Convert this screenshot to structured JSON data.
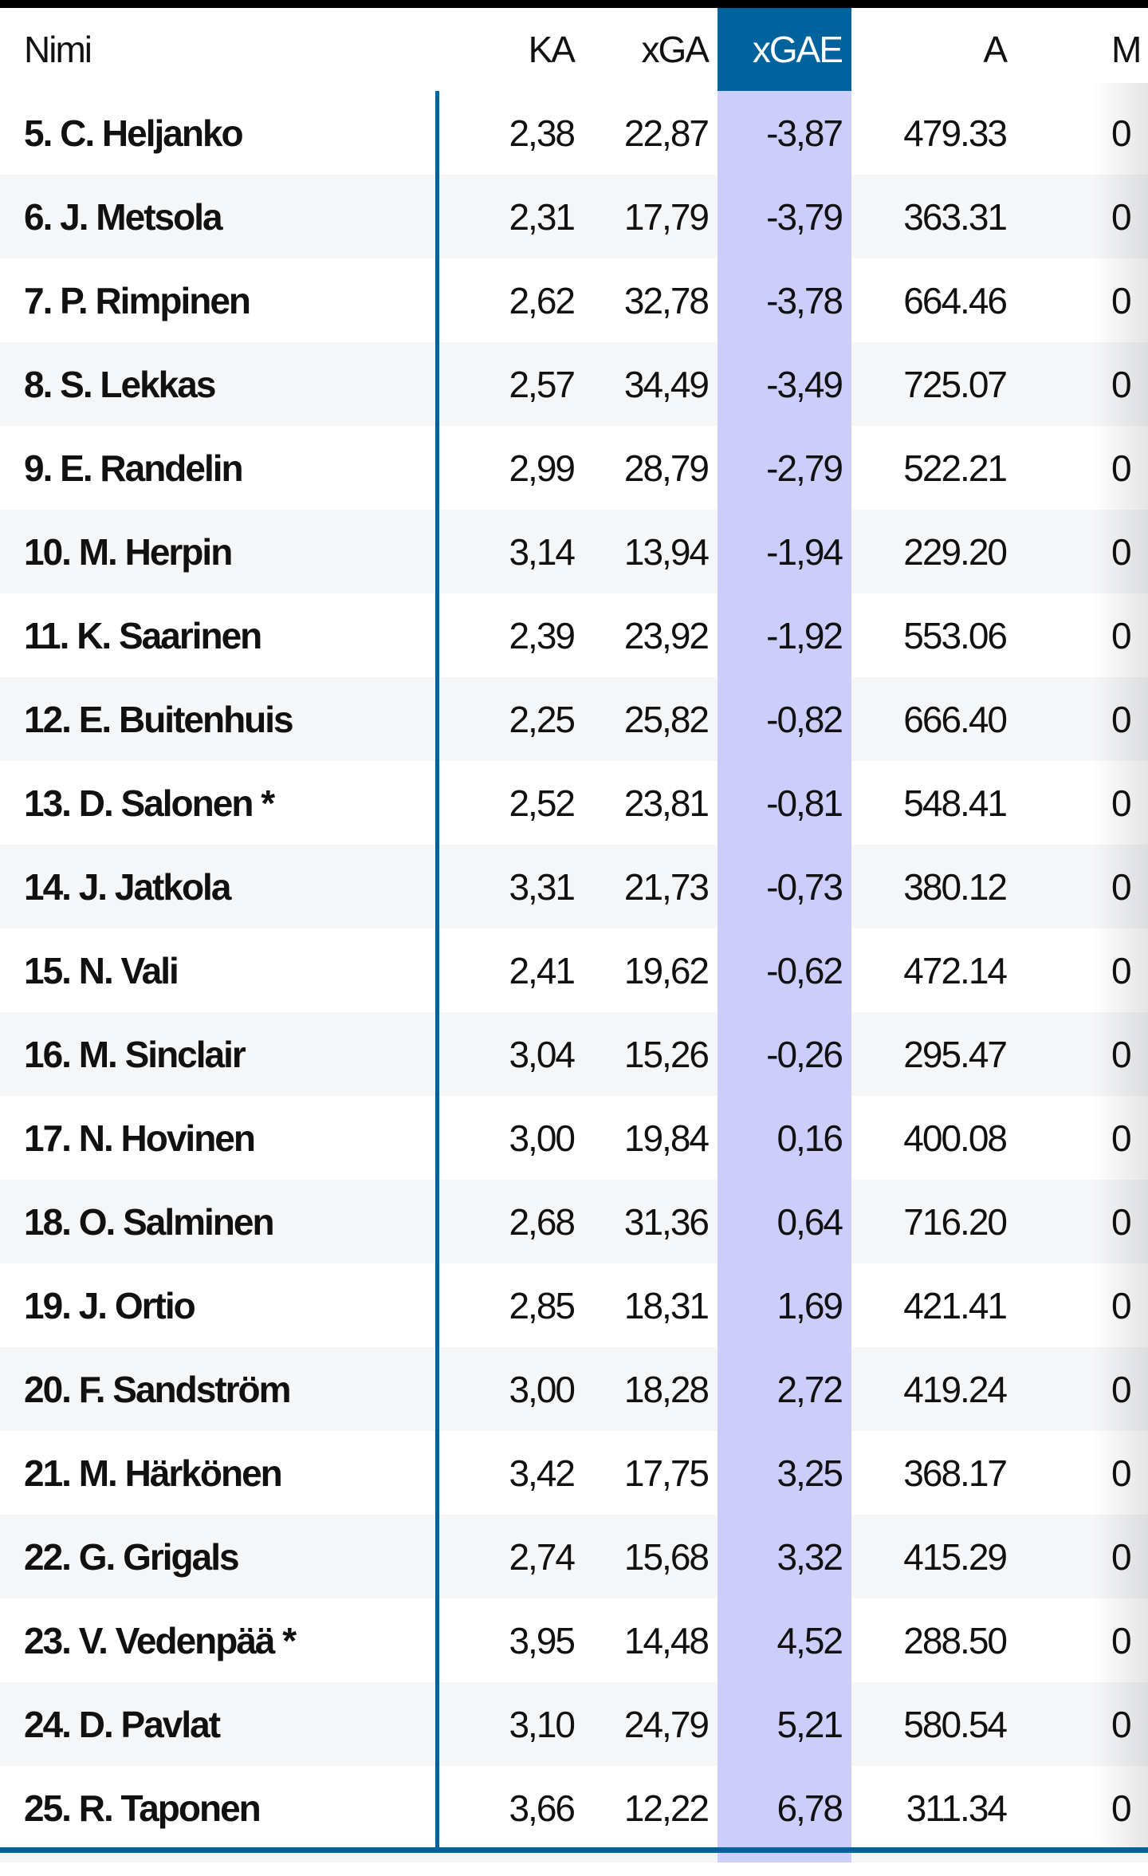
{
  "colors": {
    "accent": "#00639e",
    "highlight_column": "#cccdfb",
    "row_alt": "#f5f6f8"
  },
  "columns": {
    "name": "Nimi",
    "ka": "KA",
    "xga": "xGA",
    "xgae": "xGAE",
    "a": "A",
    "m": "M"
  },
  "sorted_column": "xGAE",
  "rows": [
    {
      "name": "5.  C. Heljanko",
      "ka": "2,38",
      "xga": "22,87",
      "xgae": "-3,87",
      "a": "479.33",
      "m": "0"
    },
    {
      "name": "6.  J. Metsola",
      "ka": "2,31",
      "xga": "17,79",
      "xgae": "-3,79",
      "a": "363.31",
      "m": "0"
    },
    {
      "name": "7.  P. Rimpinen",
      "ka": "2,62",
      "xga": "32,78",
      "xgae": "-3,78",
      "a": "664.46",
      "m": "0"
    },
    {
      "name": "8.  S. Lekkas",
      "ka": "2,57",
      "xga": "34,49",
      "xgae": "-3,49",
      "a": "725.07",
      "m": "0"
    },
    {
      "name": "9.  E. Randelin",
      "ka": "2,99",
      "xga": "28,79",
      "xgae": "-2,79",
      "a": "522.21",
      "m": "0"
    },
    {
      "name": "10.  M. Herpin",
      "ka": "3,14",
      "xga": "13,94",
      "xgae": "-1,94",
      "a": "229.20",
      "m": "0"
    },
    {
      "name": "11.  K. Saarinen",
      "ka": "2,39",
      "xga": "23,92",
      "xgae": "-1,92",
      "a": "553.06",
      "m": "0"
    },
    {
      "name": "12.  E. Buitenhuis",
      "ka": "2,25",
      "xga": "25,82",
      "xgae": "-0,82",
      "a": "666.40",
      "m": "0"
    },
    {
      "name": "13.  D. Salonen *",
      "ka": "2,52",
      "xga": "23,81",
      "xgae": "-0,81",
      "a": "548.41",
      "m": "0"
    },
    {
      "name": "14.  J. Jatkola",
      "ka": "3,31",
      "xga": "21,73",
      "xgae": "-0,73",
      "a": "380.12",
      "m": "0"
    },
    {
      "name": "15.  N. Vali",
      "ka": "2,41",
      "xga": "19,62",
      "xgae": "-0,62",
      "a": "472.14",
      "m": "0"
    },
    {
      "name": "16.  M. Sinclair",
      "ka": "3,04",
      "xga": "15,26",
      "xgae": "-0,26",
      "a": "295.47",
      "m": "0"
    },
    {
      "name": "17.  N. Hovinen",
      "ka": "3,00",
      "xga": "19,84",
      "xgae": "0,16",
      "a": "400.08",
      "m": "0"
    },
    {
      "name": "18.  O. Salminen",
      "ka": "2,68",
      "xga": "31,36",
      "xgae": "0,64",
      "a": "716.20",
      "m": "0"
    },
    {
      "name": "19.  J. Ortio",
      "ka": "2,85",
      "xga": "18,31",
      "xgae": "1,69",
      "a": "421.41",
      "m": "0"
    },
    {
      "name": "20.  F. Sandström",
      "ka": "3,00",
      "xga": "18,28",
      "xgae": "2,72",
      "a": "419.24",
      "m": "0"
    },
    {
      "name": "21.  M. Härkönen",
      "ka": "3,42",
      "xga": "17,75",
      "xgae": "3,25",
      "a": "368.17",
      "m": "0"
    },
    {
      "name": "22.  G. Grigals",
      "ka": "2,74",
      "xga": "15,68",
      "xgae": "3,32",
      "a": "415.29",
      "m": "0"
    },
    {
      "name": "23.  V. Vedenpää *",
      "ka": "3,95",
      "xga": "14,48",
      "xgae": "4,52",
      "a": "288.50",
      "m": "0"
    },
    {
      "name": "24.  D. Pavlat",
      "ka": "3,10",
      "xga": "24,79",
      "xgae": "5,21",
      "a": "580.54",
      "m": "0"
    },
    {
      "name": "25.  R. Taponen",
      "ka": "3,66",
      "xga": "12,22",
      "xgae": "6,78",
      "a": "311.34",
      "m": "0"
    }
  ]
}
